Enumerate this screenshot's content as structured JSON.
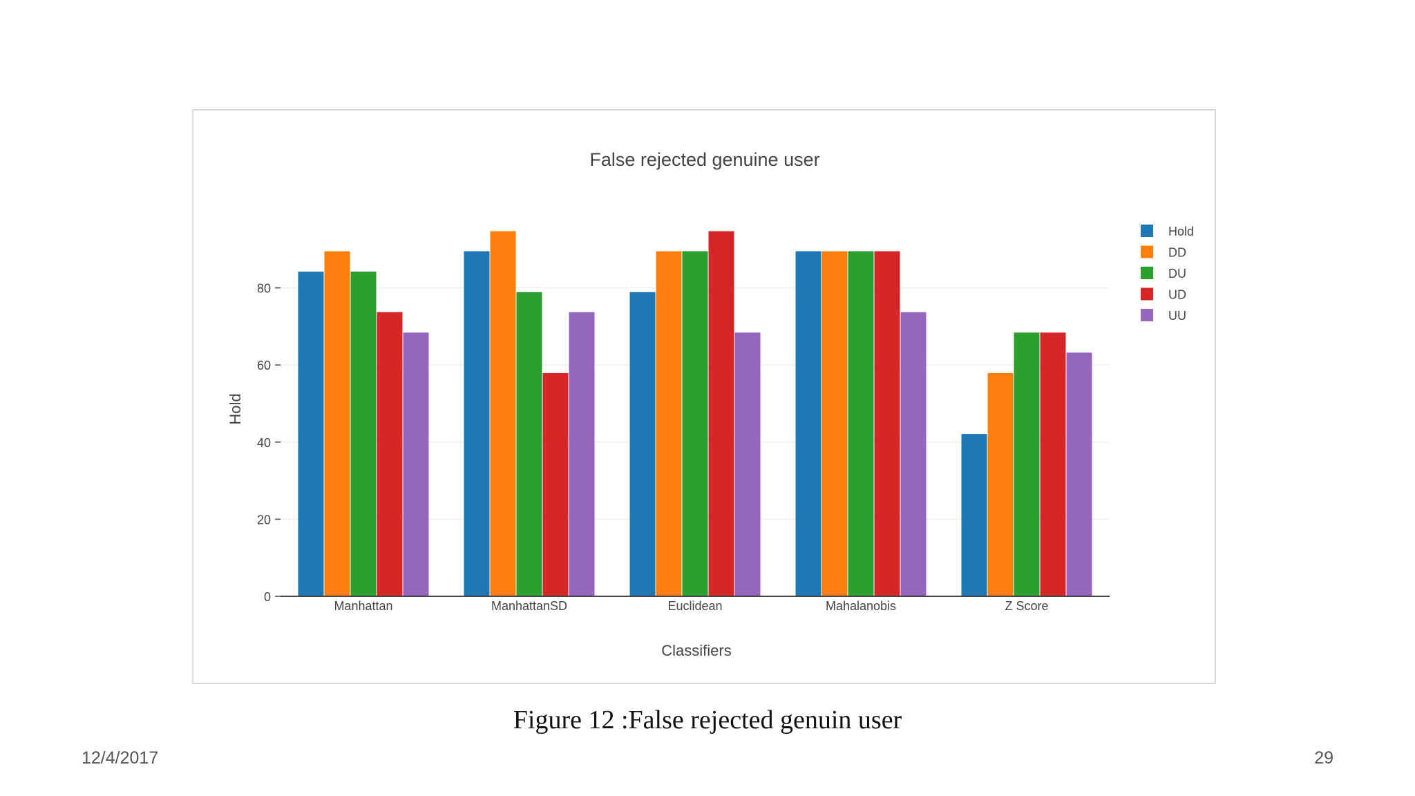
{
  "slide": {
    "caption": "Figure 12 :False  rejected genuin user",
    "date": "12/4/2017",
    "page_number": "29"
  },
  "chart_data": {
    "type": "bar",
    "title": "False rejected genuine user",
    "xlabel": "Classifiers",
    "ylabel": "Hold",
    "categories": [
      "Manhattan",
      "ManhattanSD",
      "Euclidean",
      "Mahalanobis",
      "Z Score"
    ],
    "ylim": [
      0,
      100
    ],
    "yticks": [
      0,
      20,
      40,
      60,
      80
    ],
    "grid": true,
    "legend_position": "top-right",
    "series": [
      {
        "name": "Hold",
        "color": "#1f77b4",
        "values": [
          84.2,
          89.5,
          78.9,
          89.5,
          42.1
        ]
      },
      {
        "name": "DD",
        "color": "#ff7f0e",
        "values": [
          89.5,
          94.7,
          89.5,
          89.5,
          57.9
        ]
      },
      {
        "name": "DU",
        "color": "#2ca02c",
        "values": [
          84.2,
          78.9,
          89.5,
          89.5,
          68.4
        ]
      },
      {
        "name": "UD",
        "color": "#d62728",
        "values": [
          73.7,
          57.9,
          94.7,
          89.5,
          68.4
        ]
      },
      {
        "name": "UU",
        "color": "#9467bd",
        "values": [
          68.4,
          73.7,
          68.4,
          73.7,
          63.2
        ]
      }
    ]
  }
}
